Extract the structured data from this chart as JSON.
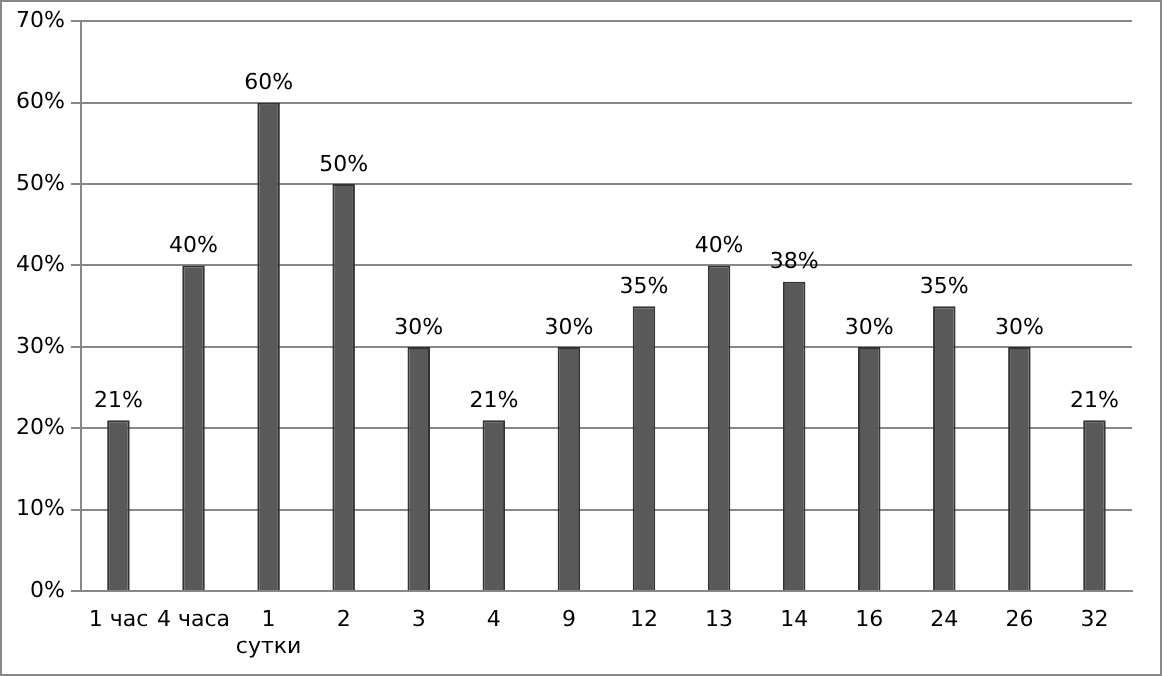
{
  "chart_data": {
    "type": "bar",
    "categories": [
      "1 час",
      "4 часа",
      "1 сутки",
      "2",
      "3",
      "4",
      "9",
      "12",
      "13",
      "14",
      "16",
      "24",
      "26",
      "32"
    ],
    "values": [
      21,
      40,
      60,
      50,
      30,
      21,
      30,
      35,
      40,
      38,
      30,
      35,
      30,
      21
    ],
    "value_labels": [
      "21%",
      "40%",
      "60%",
      "50%",
      "30%",
      "21%",
      "30%",
      "35%",
      "40%",
      "38%",
      "30%",
      "35%",
      "30%",
      "21%"
    ],
    "color": "#595959",
    "ylim": [
      0,
      70
    ],
    "yticks": [
      {
        "value": 0,
        "label": "0%"
      },
      {
        "value": 10,
        "label": "10%"
      },
      {
        "value": 20,
        "label": "20%"
      },
      {
        "value": 30,
        "label": "30%"
      },
      {
        "value": 40,
        "label": "40%"
      },
      {
        "value": 50,
        "label": "50%"
      },
      {
        "value": 60,
        "label": "60%"
      },
      {
        "value": 70,
        "label": "70%"
      }
    ],
    "grid": "y",
    "legend": false
  }
}
